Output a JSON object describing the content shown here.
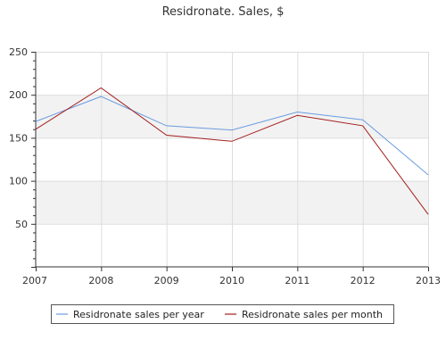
{
  "chart_data": {
    "type": "line",
    "title": "Residronate. Sales, $",
    "xlabel": "",
    "ylabel": "",
    "categories": [
      "2007",
      "2008",
      "2009",
      "2010",
      "2011",
      "2012",
      "2013"
    ],
    "ylim": [
      0,
      250
    ],
    "yticks": [
      50,
      100,
      150,
      200,
      250
    ],
    "grid": true,
    "banded_background": true,
    "legend_position": "bottom",
    "series": [
      {
        "name": "Residronate sales per year",
        "color": "#6a9be0",
        "values": [
          169,
          198,
          164,
          159,
          180,
          171,
          107
        ]
      },
      {
        "name": "Residronate sales per month",
        "color": "#a31f1f",
        "values": [
          160,
          208,
          153,
          146,
          176,
          164,
          61
        ]
      }
    ]
  }
}
